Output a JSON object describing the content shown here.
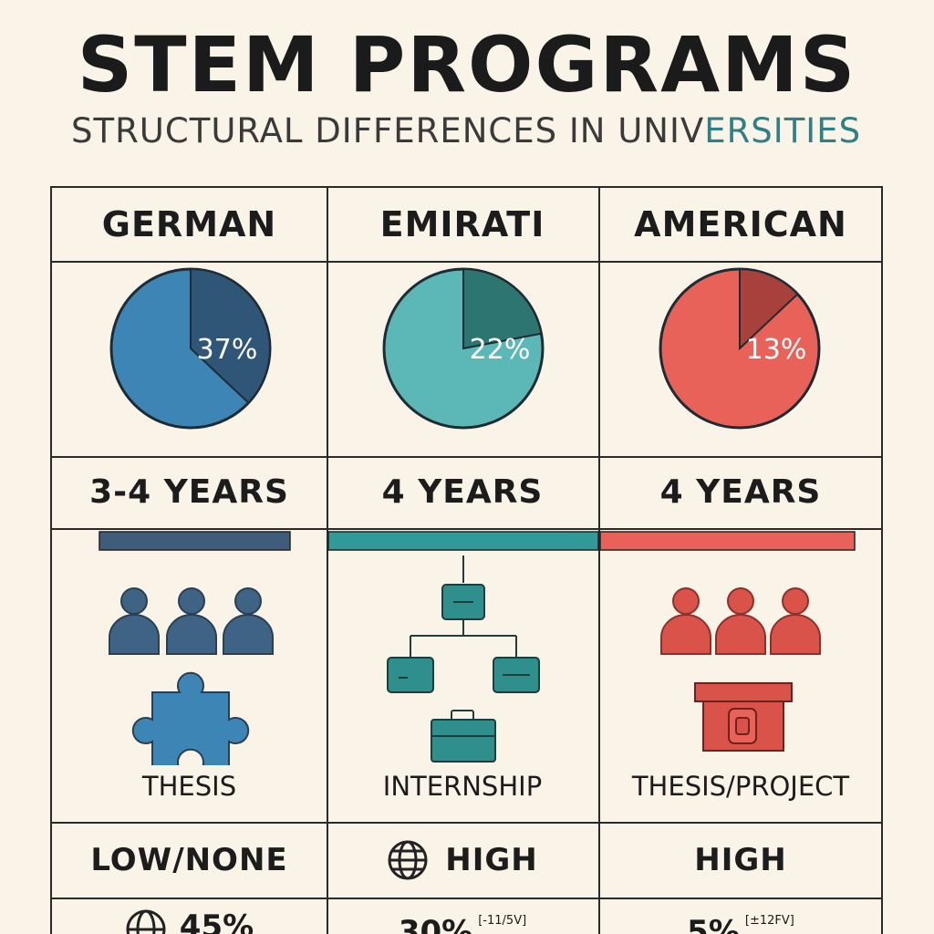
{
  "header": {
    "title": "STEM PROGRAMS",
    "subtitle_main": "STRUCTURAL DIFFERENCES IN UNIV",
    "subtitle_accent": "ERSITIES"
  },
  "columns": [
    {
      "name": "GERMAN",
      "duration": "3-4 YEARS",
      "component": "THESIS",
      "level": "LOW/NONE",
      "bottom_value": "45%",
      "bottom_note": "",
      "icons": [
        "people-icon",
        "puzzle-icon"
      ],
      "colors": {
        "main": "#3d85b5",
        "dark": "#2f5577"
      }
    },
    {
      "name": "EMIRATI",
      "duration": "4 YEARS",
      "component": "INTERNSHIP",
      "level": "HIGH",
      "bottom_value": "30%",
      "bottom_note": "[-11/5V]",
      "icons": [
        "org-chart-icon",
        "briefcase-icon",
        "globe-icon"
      ],
      "colors": {
        "main": "#5cb8b6",
        "dark": "#2d7570"
      }
    },
    {
      "name": "AMERICAN",
      "duration": "4 YEARS",
      "component": "THESIS/PROJECT",
      "level": "HIGH",
      "bottom_value": "5%",
      "bottom_note": "[±12FV]",
      "icons": [
        "people-icon",
        "presentation-icon"
      ],
      "colors": {
        "main": "#e8625a",
        "dark": "#a8403c"
      }
    }
  ],
  "chart_data": [
    {
      "type": "pie",
      "category": "GERMAN",
      "slice_label": "37%",
      "values": [
        37,
        63
      ]
    },
    {
      "type": "pie",
      "category": "EMIRATI",
      "slice_label": "22%",
      "values": [
        22,
        78
      ]
    },
    {
      "type": "pie",
      "category": "AMERICAN",
      "slice_label": "13%",
      "values": [
        13,
        87
      ]
    }
  ],
  "duration_bars": [
    {
      "category": "GERMAN",
      "fraction": 0.81,
      "color": "#3f5c7a"
    },
    {
      "category": "EMIRATI",
      "fraction": 1.0,
      "color": "#2f9a98"
    },
    {
      "category": "AMERICAN",
      "fraction": 0.9,
      "color": "#e8625a"
    }
  ]
}
